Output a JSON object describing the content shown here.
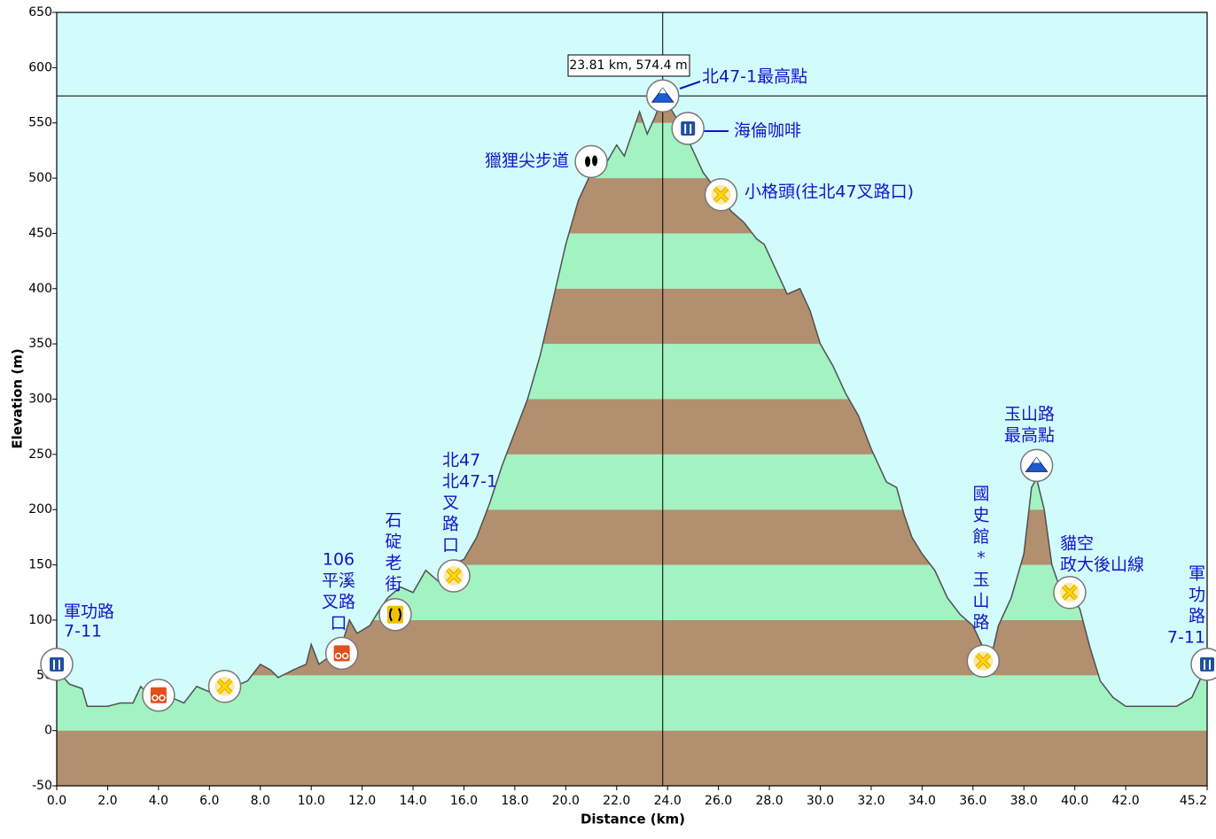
{
  "chart_data": {
    "type": "area",
    "x_label": "Distance   (km)",
    "y_label": "Elevation (m)",
    "xlim": [
      0,
      45.2
    ],
    "ylim": [
      -50,
      650
    ],
    "xticks": [
      {
        "value": 0,
        "label": "0.0"
      },
      {
        "value": 2,
        "label": "2.0"
      },
      {
        "value": 4,
        "label": "4.0"
      },
      {
        "value": 6,
        "label": "6.0"
      },
      {
        "value": 8,
        "label": "8.0"
      },
      {
        "value": 10,
        "label": "10.0"
      },
      {
        "value": 12,
        "label": "12.0"
      },
      {
        "value": 14,
        "label": "14.0"
      },
      {
        "value": 16,
        "label": "16.0"
      },
      {
        "value": 18,
        "label": "18.0"
      },
      {
        "value": 20,
        "label": "20.0"
      },
      {
        "value": 22,
        "label": "22.0"
      },
      {
        "value": 24,
        "label": "24.0"
      },
      {
        "value": 26,
        "label": "26.0"
      },
      {
        "value": 28,
        "label": "28.0"
      },
      {
        "value": 30,
        "label": "30.0"
      },
      {
        "value": 32,
        "label": "32.0"
      },
      {
        "value": 34,
        "label": "34.0"
      },
      {
        "value": 36,
        "label": "36.0"
      },
      {
        "value": 38,
        "label": "38.0"
      },
      {
        "value": 40,
        "label": "40.0"
      },
      {
        "value": 42,
        "label": "42.0"
      },
      45.2
    ],
    "yticks": [
      -50,
      0,
      50,
      100,
      150,
      200,
      250,
      300,
      350,
      400,
      450,
      500,
      550,
      600,
      650
    ],
    "background": "#d2fcfc",
    "band_colors": [
      "#b28f6e",
      "#a2f2c2"
    ],
    "line_color": "#505050",
    "x": [
      0,
      0.5,
      1.0,
      1.2,
      2.0,
      2.5,
      3.0,
      3.3,
      3.6,
      4.0,
      4.5,
      5.0,
      5.5,
      6.0,
      6.5,
      7.0,
      7.5,
      8.0,
      8.4,
      8.7,
      9.3,
      9.8,
      10.0,
      10.3,
      10.6,
      11.0,
      11.3,
      11.5,
      11.8,
      12.3,
      12.7,
      13.0,
      13.5,
      14.0,
      14.5,
      15.0,
      15.5,
      16.0,
      16.5,
      17.0,
      17.5,
      18.0,
      18.5,
      19.0,
      19.5,
      20.0,
      20.5,
      21.0,
      21.5,
      22.0,
      22.3,
      22.6,
      22.9,
      23.2,
      23.5,
      23.81,
      24.2,
      24.6,
      25.0,
      25.4,
      25.9,
      26.5,
      27.0,
      27.5,
      27.8,
      28.3,
      28.7,
      29.2,
      29.6,
      30.0,
      30.5,
      31.0,
      31.5,
      32.0,
      32.3,
      32.6,
      33.0,
      33.3,
      33.6,
      34.0,
      34.5,
      35.0,
      35.5,
      36.0,
      36.4,
      36.7,
      37.0,
      37.5,
      38.0,
      38.3,
      38.5,
      38.8,
      39.1,
      39.4,
      39.8,
      40.2,
      40.6,
      41.0,
      41.5,
      42.0,
      43.0,
      44.0,
      44.6,
      45.0,
      45.2
    ],
    "values": [
      55,
      42,
      38,
      22,
      22,
      25,
      25,
      40,
      33,
      28,
      30,
      25,
      40,
      35,
      38,
      40,
      45,
      60,
      55,
      48,
      55,
      60,
      78,
      60,
      65,
      75,
      85,
      100,
      88,
      95,
      110,
      120,
      130,
      125,
      145,
      135,
      150,
      155,
      175,
      205,
      240,
      270,
      300,
      340,
      390,
      440,
      480,
      505,
      510,
      530,
      520,
      540,
      560,
      540,
      555,
      574.4,
      560,
      545,
      525,
      505,
      490,
      470,
      460,
      445,
      440,
      415,
      395,
      400,
      380,
      350,
      330,
      305,
      285,
      255,
      240,
      225,
      220,
      195,
      175,
      160,
      145,
      120,
      105,
      95,
      75,
      65,
      95,
      120,
      160,
      220,
      228,
      200,
      150,
      130,
      125,
      110,
      75,
      45,
      30,
      22,
      22,
      22,
      30,
      50,
      55
    ],
    "cursor": {
      "x": 23.81,
      "y": 574.4,
      "label": "23.81 km, 574.4 m"
    },
    "waypoints": [
      {
        "distance": 0,
        "elevation": 60,
        "icon": "restaurant",
        "label": [
          "軍功路",
          "7-11"
        ]
      },
      {
        "distance": 4.0,
        "elevation": 32,
        "icon": "bike"
      },
      {
        "distance": 6.6,
        "elevation": 40,
        "icon": "cross"
      },
      {
        "distance": 11.2,
        "elevation": 70,
        "icon": "bike",
        "label": [
          "106",
          "平溪",
          "叉路",
          "口"
        ]
      },
      {
        "distance": 13.3,
        "elevation": 105,
        "icon": "bridge",
        "label": [
          "石",
          "碇",
          "老",
          "街"
        ]
      },
      {
        "distance": 15.6,
        "elevation": 140,
        "icon": "cross",
        "label": [
          "北47",
          "北47-1",
          "叉",
          "路",
          "口"
        ]
      },
      {
        "distance": 21.0,
        "elevation": 515,
        "icon": "foot",
        "label": [
          "獵狸尖步道"
        ]
      },
      {
        "distance": 23.81,
        "elevation": 574.4,
        "icon": "summit",
        "label": [
          "北47-1最高點"
        ]
      },
      {
        "distance": 24.8,
        "elevation": 545,
        "icon": "restaurant",
        "label": [
          "海倫咖啡"
        ]
      },
      {
        "distance": 26.1,
        "elevation": 485,
        "icon": "cross",
        "label": [
          "小格頭(往北47叉路口)"
        ]
      },
      {
        "distance": 36.4,
        "elevation": 63,
        "icon": "cross",
        "label": [
          "國",
          "史",
          "館",
          "*",
          "玉",
          "山",
          "路"
        ]
      },
      {
        "distance": 38.5,
        "elevation": 240,
        "icon": "summit",
        "label": [
          "玉山路",
          "最高點"
        ]
      },
      {
        "distance": 39.8,
        "elevation": 125,
        "icon": "cross",
        "label": [
          "貓空",
          "政大後山線"
        ]
      },
      {
        "distance": 45.2,
        "elevation": 60,
        "icon": "restaurant",
        "label": [
          "軍",
          "功",
          "路",
          "7-11"
        ]
      }
    ]
  }
}
